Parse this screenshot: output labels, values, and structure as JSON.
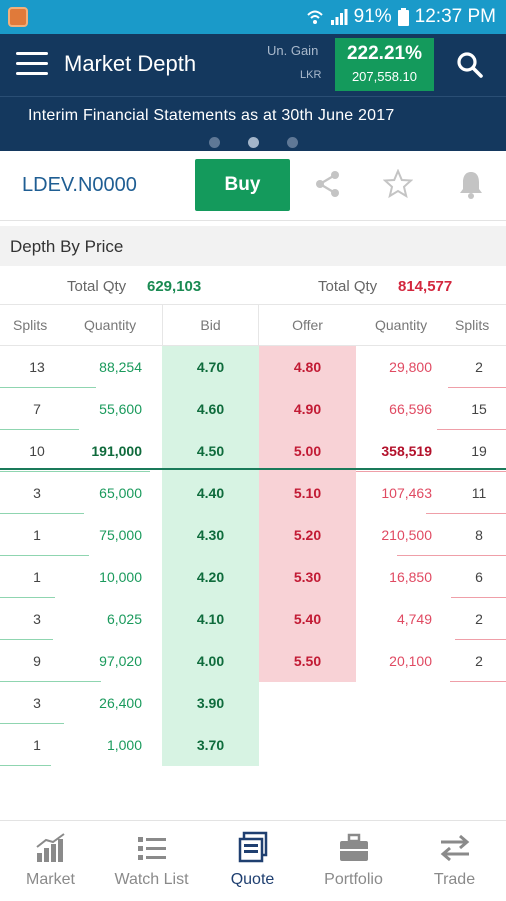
{
  "status_bar": {
    "battery": "91%",
    "time": "12:37 PM"
  },
  "app_bar": {
    "title": "Market Depth",
    "gain_label": "Un. Gain",
    "gain_currency": "LKR",
    "gain_percent": "222.21%",
    "gain_amount": "207,558.10"
  },
  "banner": {
    "text": "Interim Financial Statements as at 30th June 2017",
    "active_dot": 1
  },
  "quote": {
    "symbol": "LDEV.N0000",
    "buy_label": "Buy"
  },
  "depth": {
    "title": "Depth By Price",
    "total_label": "Total Qty",
    "bid_total": "629,103",
    "offer_total": "814,577",
    "columns": [
      "Splits",
      "Quantity",
      "Bid",
      "Offer",
      "Quantity",
      "Splits"
    ],
    "rows": [
      {
        "bid_splits": "13",
        "bid_qty": "88,254",
        "bid": "4.70",
        "offer": "4.80",
        "offer_qty": "29,800",
        "offer_splits": "2"
      },
      {
        "bid_splits": "7",
        "bid_qty": "55,600",
        "bid": "4.60",
        "offer": "4.90",
        "offer_qty": "66,596",
        "offer_splits": "15"
      },
      {
        "bid_splits": "10",
        "bid_qty": "191,000",
        "bid": "4.50",
        "offer": "5.00",
        "offer_qty": "358,519",
        "offer_splits": "19"
      },
      {
        "bid_splits": "3",
        "bid_qty": "65,000",
        "bid": "4.40",
        "offer": "5.10",
        "offer_qty": "107,463",
        "offer_splits": "11"
      },
      {
        "bid_splits": "1",
        "bid_qty": "75,000",
        "bid": "4.30",
        "offer": "5.20",
        "offer_qty": "210,500",
        "offer_splits": "8"
      },
      {
        "bid_splits": "1",
        "bid_qty": "10,000",
        "bid": "4.20",
        "offer": "5.30",
        "offer_qty": "16,850",
        "offer_splits": "6"
      },
      {
        "bid_splits": "3",
        "bid_qty": "6,025",
        "bid": "4.10",
        "offer": "5.40",
        "offer_qty": "4,749",
        "offer_splits": "2"
      },
      {
        "bid_splits": "9",
        "bid_qty": "97,020",
        "bid": "4.00",
        "offer": "5.50",
        "offer_qty": "20,100",
        "offer_splits": "2"
      },
      {
        "bid_splits": "3",
        "bid_qty": "26,400",
        "bid": "3.90",
        "offer": "",
        "offer_qty": "",
        "offer_splits": ""
      },
      {
        "bid_splits": "1",
        "bid_qty": "1,000",
        "bid": "3.70",
        "offer": "",
        "offer_qty": "",
        "offer_splits": ""
      }
    ]
  },
  "bottom_nav": [
    {
      "label": "Market",
      "icon": "bar-chart-icon"
    },
    {
      "label": "Watch List",
      "icon": "list-icon"
    },
    {
      "label": "Quote",
      "icon": "quote-window-icon",
      "active": true
    },
    {
      "label": "Portfolio",
      "icon": "briefcase-icon"
    },
    {
      "label": "Trade",
      "icon": "swap-arrows-icon"
    }
  ],
  "colors": {
    "brand_dark": "#14385e",
    "status_bar": "#1a9ac9",
    "buy_green": "#149a5c",
    "offer_red": "#d3273e"
  }
}
